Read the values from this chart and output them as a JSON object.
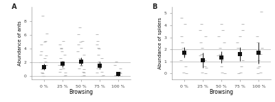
{
  "panel_A": {
    "label": "A",
    "ylabel": "Abundance of ants",
    "xlabel": "Browsing",
    "categories": [
      "0 %",
      "25 %",
      "50 %",
      "75 %",
      "100 %"
    ],
    "means": [
      1.35,
      1.8,
      2.15,
      1.55,
      0.28
    ],
    "ci_low": [
      0.9,
      1.35,
      1.65,
      1.0,
      0.05
    ],
    "ci_high": [
      1.8,
      2.25,
      2.65,
      2.1,
      0.52
    ],
    "hline_y": [
      0.0,
      2.0
    ],
    "ylim": [
      -0.5,
      10.0
    ],
    "yticks": [
      0,
      2,
      4,
      6,
      8
    ],
    "scatter_points": [
      [
        8.8,
        6.2,
        5.1,
        5.0,
        4.6,
        3.6,
        3.1,
        3.0,
        2.6,
        2.1,
        2.0,
        2.0,
        1.6,
        1.0,
        0.5,
        0.5,
        0.4,
        0.0,
        0.0,
        0.0
      ],
      [
        5.1,
        4.6,
        4.1,
        4.0,
        3.6,
        3.1,
        2.6,
        2.1,
        2.0,
        1.6,
        1.1,
        1.0,
        0.6,
        0.5,
        0.1,
        0.0
      ],
      [
        7.1,
        6.1,
        5.1,
        5.0,
        4.6,
        4.1,
        3.6,
        3.1,
        2.6,
        2.1,
        2.0,
        1.6,
        1.5,
        1.1,
        1.0,
        0.6,
        0.5,
        0.1,
        0.0,
        0.0
      ],
      [
        6.1,
        5.1,
        4.6,
        4.1,
        4.0,
        3.1,
        2.6,
        2.1,
        2.0,
        1.6,
        1.1,
        0.6,
        0.5,
        0.1,
        0.0
      ],
      [
        2.1,
        1.6,
        1.1,
        0.6,
        0.5,
        0.4,
        0.1,
        0.0,
        0.0,
        0.0
      ]
    ]
  },
  "panel_B": {
    "label": "B",
    "ylabel": "Abundance of spiders",
    "xlabel": "Browsing",
    "categories": [
      "0 %",
      "25 %",
      "50 %",
      "75 %",
      "100 %"
    ],
    "means": [
      1.75,
      1.1,
      1.35,
      1.6,
      1.7
    ],
    "ci_low": [
      1.3,
      0.45,
      0.85,
      1.05,
      0.8
    ],
    "ci_high": [
      2.2,
      1.75,
      1.85,
      2.15,
      2.6
    ],
    "hline_y": [
      1.0,
      2.0
    ],
    "ylim": [
      -0.5,
      5.5
    ],
    "yticks": [
      0,
      1,
      2,
      3,
      4,
      5
    ],
    "scatter_points": [
      [
        4.6,
        4.1,
        3.1,
        2.6,
        2.1,
        2.0,
        1.6,
        1.5,
        1.1,
        0.6,
        0.1,
        0.0
      ],
      [
        4.1,
        3.6,
        3.1,
        2.6,
        2.1,
        1.6,
        1.5,
        1.1,
        0.6,
        0.5,
        0.1,
        0.0
      ],
      [
        4.1,
        3.6,
        3.1,
        2.6,
        2.1,
        1.6,
        1.5,
        1.1,
        0.6,
        0.1,
        0.0
      ],
      [
        4.1,
        3.6,
        3.1,
        2.6,
        2.1,
        2.0,
        1.6,
        1.1,
        0.6,
        0.1,
        0.0
      ],
      [
        5.1,
        3.1,
        2.6,
        2.1,
        1.6,
        1.1,
        0.6,
        0.5,
        0.1,
        0.0
      ]
    ]
  },
  "scatter_color": "#bbbbbb",
  "mean_color": "#111111",
  "hline_color": "#bbbbbb",
  "background_color": "#ffffff",
  "marker_size": 4,
  "scatter_marker": "_",
  "scatter_size": 8,
  "fontsize_ylabel": 5,
  "fontsize_xlabel": 5.5,
  "fontsize_tick": 4.5,
  "fontsize_panel": 7,
  "spine_color": "#999999"
}
